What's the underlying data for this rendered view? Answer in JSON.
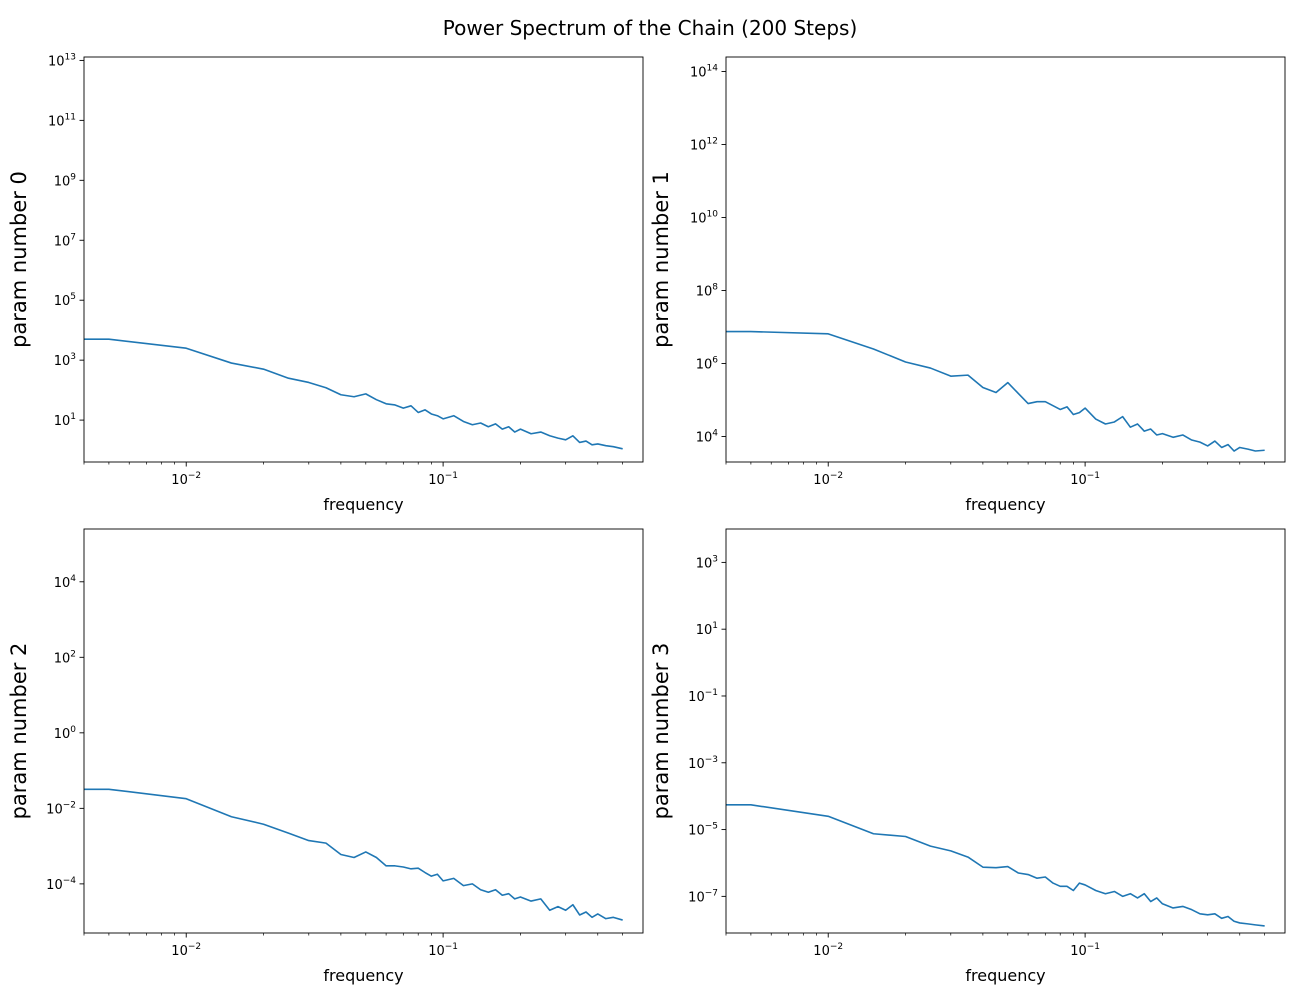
{
  "figure": {
    "title": "Power Spectrum of the Chain (200 Steps)",
    "line_color": "#1f77b4"
  },
  "chart_data": [
    {
      "type": "line",
      "ylabel": "param number 0",
      "xlabel": "frequency",
      "xscale": "log",
      "yscale": "log",
      "xlim": [
        0.004,
        0.6
      ],
      "ylim": [
        0.4,
        13000000000000
      ],
      "xticks": [
        {
          "base": "10",
          "exp": "−2",
          "value": 0.01
        },
        {
          "base": "10",
          "exp": "−1",
          "value": 0.1
        }
      ],
      "yticks": [
        {
          "base": "10",
          "exp": "1",
          "value": 10
        },
        {
          "base": "10",
          "exp": "3",
          "value": 1000
        },
        {
          "base": "10",
          "exp": "5",
          "value": 100000
        },
        {
          "base": "10",
          "exp": "7",
          "value": 10000000
        },
        {
          "base": "10",
          "exp": "9",
          "value": 1000000000
        },
        {
          "base": "10",
          "exp": "11",
          "value": 100000000000
        },
        {
          "base": "10",
          "exp": "13",
          "value": 10000000000000
        }
      ],
      "x": [
        0.004,
        0.005,
        0.01,
        0.015,
        0.02,
        0.025,
        0.03,
        0.035,
        0.04,
        0.045,
        0.05,
        0.055,
        0.06,
        0.065,
        0.07,
        0.075,
        0.08,
        0.085,
        0.09,
        0.095,
        0.1,
        0.11,
        0.12,
        0.13,
        0.14,
        0.15,
        0.16,
        0.17,
        0.18,
        0.19,
        0.2,
        0.22,
        0.24,
        0.26,
        0.28,
        0.3,
        0.32,
        0.34,
        0.36,
        0.38,
        0.4,
        0.43,
        0.46,
        0.5
      ],
      "y": [
        5000,
        5000,
        2500,
        800,
        500,
        250,
        180,
        120,
        70,
        60,
        75,
        48,
        35,
        32,
        25,
        30,
        18,
        22,
        16,
        14,
        11,
        14,
        9,
        7,
        8,
        6,
        7.5,
        5,
        6,
        4,
        5,
        3.5,
        4,
        3,
        2.5,
        2.2,
        3,
        1.8,
        2,
        1.5,
        1.6,
        1.4,
        1.3,
        1.1
      ]
    },
    {
      "type": "line",
      "ylabel": "param number 1",
      "xlabel": "frequency",
      "xscale": "log",
      "yscale": "log",
      "xlim": [
        0.004,
        0.6
      ],
      "ylim": [
        2000,
        250000000000000
      ],
      "xticks": [
        {
          "base": "10",
          "exp": "−2",
          "value": 0.01
        },
        {
          "base": "10",
          "exp": "−1",
          "value": 0.1
        }
      ],
      "yticks": [
        {
          "base": "10",
          "exp": "4",
          "value": 10000
        },
        {
          "base": "10",
          "exp": "6",
          "value": 1000000
        },
        {
          "base": "10",
          "exp": "8",
          "value": 100000000
        },
        {
          "base": "10",
          "exp": "10",
          "value": 10000000000
        },
        {
          "base": "10",
          "exp": "12",
          "value": 1000000000000
        },
        {
          "base": "10",
          "exp": "14",
          "value": 100000000000000
        }
      ],
      "x": [
        0.004,
        0.005,
        0.01,
        0.015,
        0.02,
        0.025,
        0.03,
        0.035,
        0.04,
        0.045,
        0.05,
        0.055,
        0.06,
        0.065,
        0.07,
        0.075,
        0.08,
        0.085,
        0.09,
        0.095,
        0.1,
        0.11,
        0.12,
        0.13,
        0.14,
        0.15,
        0.16,
        0.17,
        0.18,
        0.19,
        0.2,
        0.22,
        0.24,
        0.26,
        0.28,
        0.3,
        0.32,
        0.34,
        0.36,
        0.38,
        0.4,
        0.43,
        0.46,
        0.5
      ],
      "y": [
        7500000,
        7500000,
        6500000,
        2500000,
        1100000,
        750000,
        450000,
        480000,
        220000,
        160000,
        300000,
        150000,
        80000,
        90000,
        90000,
        70000,
        55000,
        65000,
        40000,
        45000,
        60000,
        30000,
        22000,
        25000,
        35000,
        18000,
        22000,
        14000,
        16000,
        11000,
        12000,
        9500,
        11000,
        8000,
        7000,
        5500,
        7500,
        5000,
        6000,
        4000,
        5000,
        4500,
        4000,
        4200
      ]
    },
    {
      "type": "line",
      "ylabel": "param number 2",
      "xlabel": "frequency",
      "xscale": "log",
      "yscale": "log",
      "xlim": [
        0.004,
        0.6
      ],
      "ylim": [
        5e-06,
        250000
      ],
      "xticks": [
        {
          "base": "10",
          "exp": "−2",
          "value": 0.01
        },
        {
          "base": "10",
          "exp": "−1",
          "value": 0.1
        }
      ],
      "yticks": [
        {
          "base": "10",
          "exp": "−4",
          "value": 0.0001
        },
        {
          "base": "10",
          "exp": "−2",
          "value": 0.01
        },
        {
          "base": "10",
          "exp": "0",
          "value": 1
        },
        {
          "base": "10",
          "exp": "2",
          "value": 100
        },
        {
          "base": "10",
          "exp": "4",
          "value": 10000
        }
      ],
      "x": [
        0.004,
        0.005,
        0.01,
        0.015,
        0.02,
        0.025,
        0.03,
        0.035,
        0.04,
        0.045,
        0.05,
        0.055,
        0.06,
        0.065,
        0.07,
        0.075,
        0.08,
        0.085,
        0.09,
        0.095,
        0.1,
        0.11,
        0.12,
        0.13,
        0.14,
        0.15,
        0.16,
        0.17,
        0.18,
        0.19,
        0.2,
        0.22,
        0.24,
        0.26,
        0.28,
        0.3,
        0.32,
        0.34,
        0.36,
        0.38,
        0.4,
        0.43,
        0.46,
        0.5
      ],
      "y": [
        0.032,
        0.032,
        0.018,
        0.006,
        0.0038,
        0.0022,
        0.0014,
        0.0012,
        0.0006,
        0.0005,
        0.0007,
        0.0005,
        0.0003,
        0.0003,
        0.00028,
        0.00025,
        0.00026,
        0.0002,
        0.00016,
        0.00018,
        0.00012,
        0.00014,
        9e-05,
        0.0001,
        7e-05,
        6e-05,
        7e-05,
        5e-05,
        5.5e-05,
        4e-05,
        4.5e-05,
        3.5e-05,
        4e-05,
        2e-05,
        2.5e-05,
        2e-05,
        2.8e-05,
        1.5e-05,
        1.8e-05,
        1.3e-05,
        1.6e-05,
        1.2e-05,
        1.3e-05,
        1.1e-05
      ]
    },
    {
      "type": "line",
      "ylabel": "param number 3",
      "xlabel": "frequency",
      "xscale": "log",
      "yscale": "log",
      "xlim": [
        0.004,
        0.6
      ],
      "ylim": [
        8e-09,
        10000
      ],
      "xticks": [
        {
          "base": "10",
          "exp": "−2",
          "value": 0.01
        },
        {
          "base": "10",
          "exp": "−1",
          "value": 0.1
        }
      ],
      "yticks": [
        {
          "base": "10",
          "exp": "−7",
          "value": 1e-07
        },
        {
          "base": "10",
          "exp": "−5",
          "value": 1e-05
        },
        {
          "base": "10",
          "exp": "−3",
          "value": 0.001
        },
        {
          "base": "10",
          "exp": "−1",
          "value": 0.1
        },
        {
          "base": "10",
          "exp": "1",
          "value": 10
        },
        {
          "base": "10",
          "exp": "3",
          "value": 1000
        }
      ],
      "x": [
        0.004,
        0.005,
        0.01,
        0.015,
        0.02,
        0.025,
        0.03,
        0.035,
        0.04,
        0.045,
        0.05,
        0.055,
        0.06,
        0.065,
        0.07,
        0.075,
        0.08,
        0.085,
        0.09,
        0.095,
        0.1,
        0.11,
        0.12,
        0.13,
        0.14,
        0.15,
        0.16,
        0.17,
        0.18,
        0.19,
        0.2,
        0.22,
        0.24,
        0.26,
        0.28,
        0.3,
        0.32,
        0.34,
        0.36,
        0.38,
        0.4,
        0.43,
        0.46,
        0.5
      ],
      "y": [
        5.5e-05,
        5.5e-05,
        2.5e-05,
        7.5e-06,
        6.2e-06,
        3.2e-06,
        2.3e-06,
        1.5e-06,
        7.5e-07,
        7.2e-07,
        7.8e-07,
        5e-07,
        4.5e-07,
        3.5e-07,
        3.8e-07,
        2.5e-07,
        2e-07,
        2e-07,
        1.5e-07,
        2.5e-07,
        2.2e-07,
        1.5e-07,
        1.2e-07,
        1.4e-07,
        1e-07,
        1.2e-07,
        9e-08,
        1.2e-07,
        7e-08,
        9e-08,
        6e-08,
        4.5e-08,
        5e-08,
        4e-08,
        3e-08,
        2.8e-08,
        3e-08,
        2.2e-08,
        2.5e-08,
        1.8e-08,
        1.6e-08,
        1.5e-08,
        1.4e-08,
        1.3e-08
      ]
    }
  ]
}
